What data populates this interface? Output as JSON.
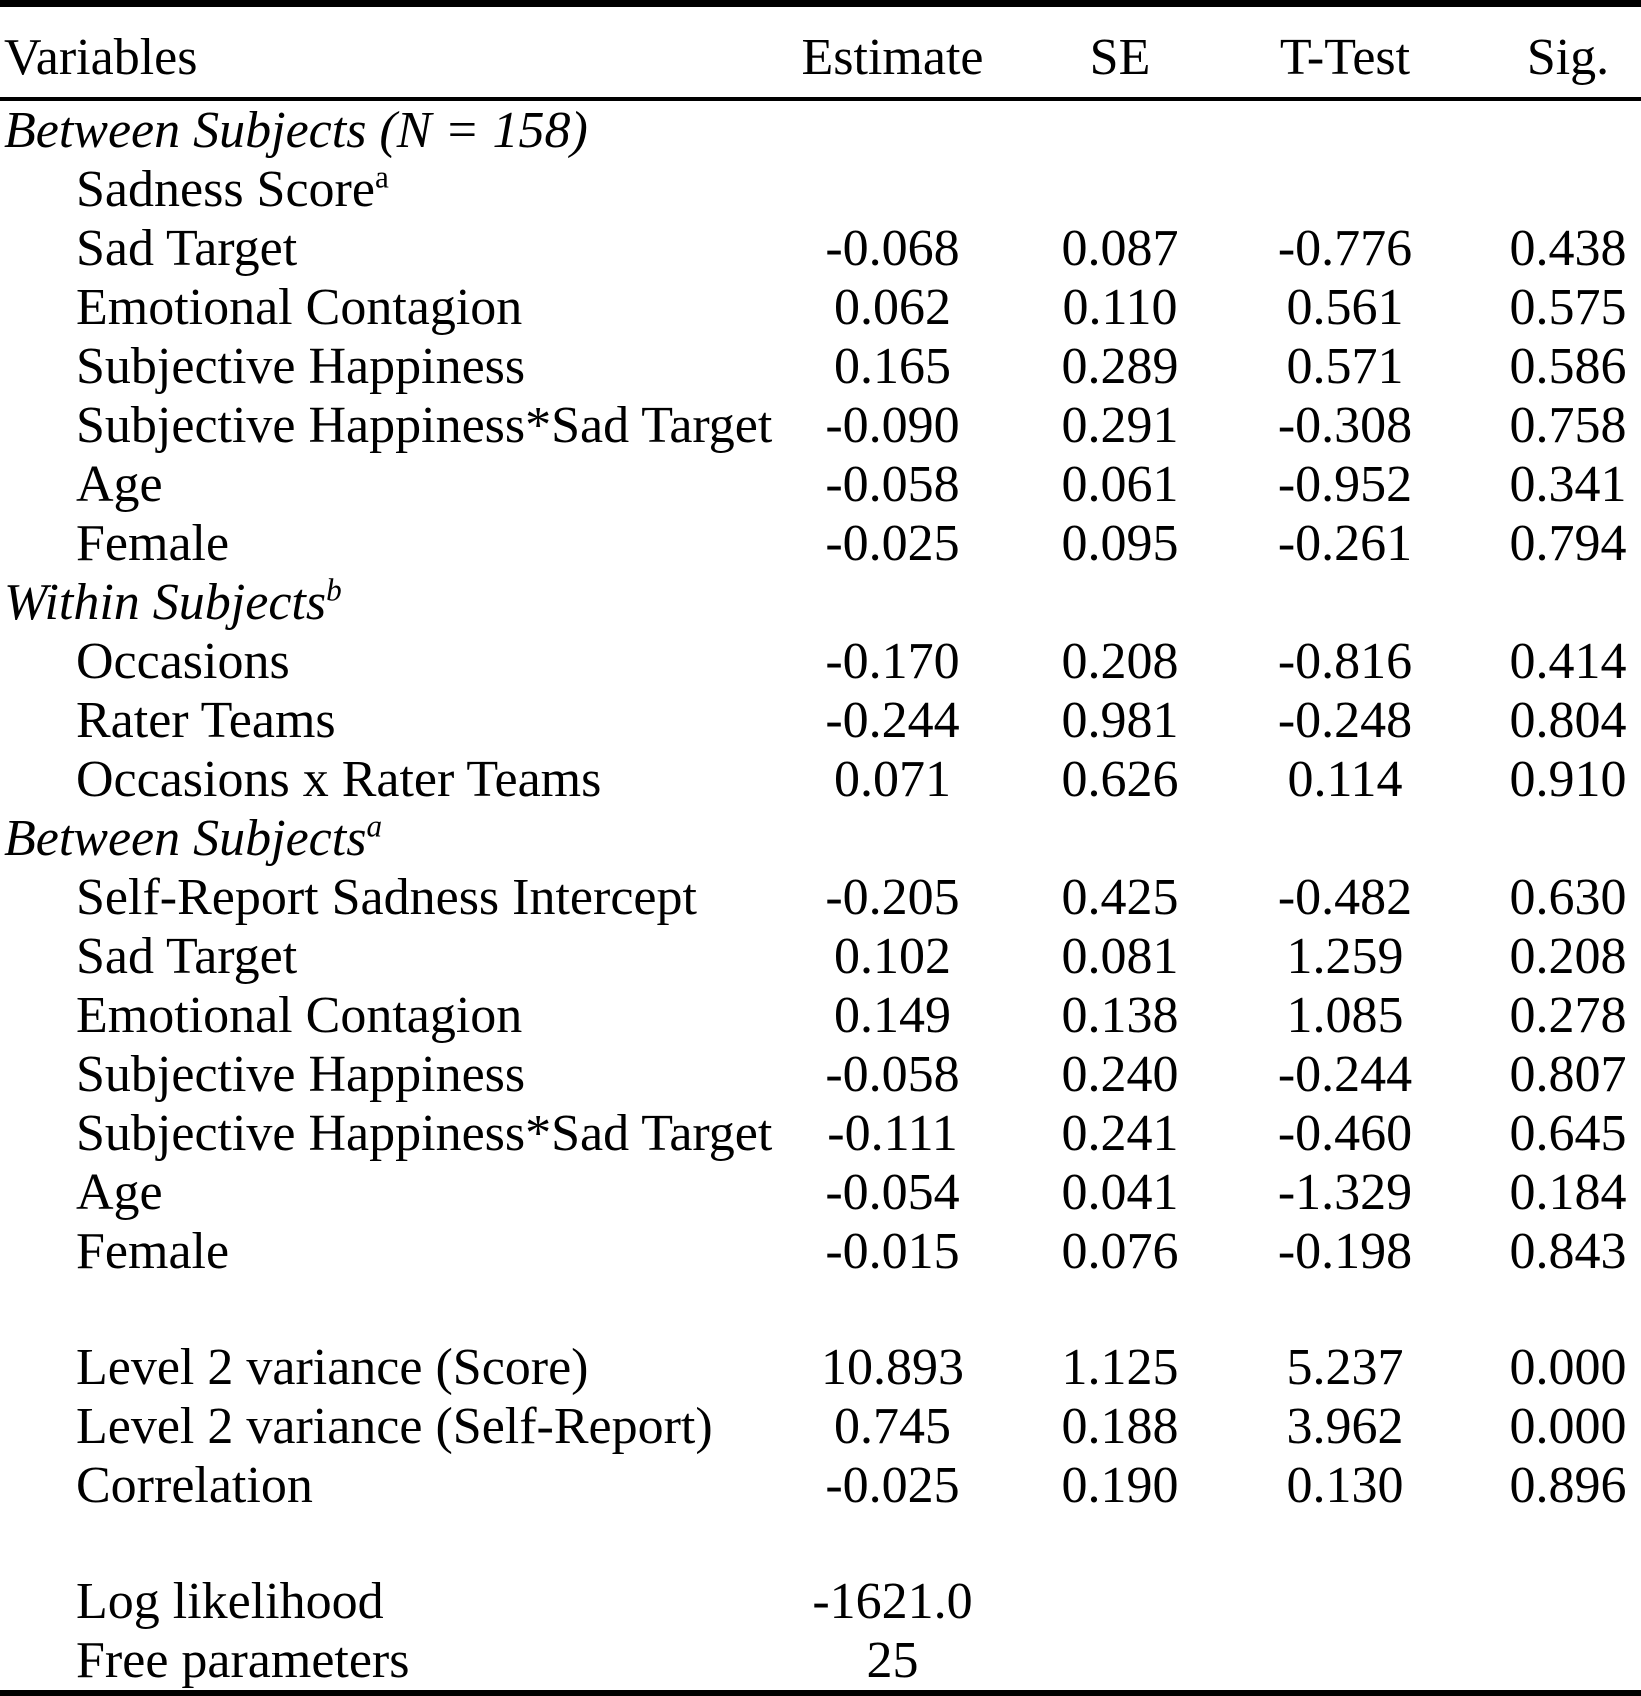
{
  "table": {
    "columns": [
      "Variables",
      "Estimate",
      "SE",
      "T-Test",
      "Sig."
    ],
    "rows": [
      {
        "kind": "section",
        "label": "Between Subjects (N = 158)",
        "sup": "",
        "values": [
          "",
          "",
          "",
          ""
        ]
      },
      {
        "kind": "item",
        "label": "Sadness Score",
        "sup": "a",
        "values": [
          "",
          "",
          "",
          ""
        ]
      },
      {
        "kind": "item",
        "label": "Sad Target",
        "sup": "",
        "values": [
          "-0.068",
          "0.087",
          "-0.776",
          "0.438"
        ]
      },
      {
        "kind": "item",
        "label": "Emotional Contagion",
        "sup": "",
        "values": [
          "0.062",
          "0.110",
          "0.561",
          "0.575"
        ]
      },
      {
        "kind": "item",
        "label": "Subjective Happiness",
        "sup": "",
        "values": [
          "0.165",
          "0.289",
          "0.571",
          "0.586"
        ]
      },
      {
        "kind": "item",
        "label": "Subjective Happiness*Sad Target",
        "sup": "",
        "values": [
          "-0.090",
          "0.291",
          "-0.308",
          "0.758"
        ]
      },
      {
        "kind": "item",
        "label": "Age",
        "sup": "",
        "values": [
          "-0.058",
          "0.061",
          "-0.952",
          "0.341"
        ]
      },
      {
        "kind": "item",
        "label": "Female",
        "sup": "",
        "values": [
          "-0.025",
          "0.095",
          "-0.261",
          "0.794"
        ]
      },
      {
        "kind": "section",
        "label": "Within Subjects",
        "sup": "b",
        "values": [
          "",
          "",
          "",
          ""
        ]
      },
      {
        "kind": "item",
        "label": "Occasions",
        "sup": "",
        "values": [
          "-0.170",
          "0.208",
          "-0.816",
          "0.414"
        ]
      },
      {
        "kind": "item",
        "label": "Rater Teams",
        "sup": "",
        "values": [
          "-0.244",
          "0.981",
          "-0.248",
          "0.804"
        ]
      },
      {
        "kind": "item",
        "label": "Occasions x Rater Teams",
        "sup": "",
        "values": [
          "0.071",
          "0.626",
          "0.114",
          "0.910"
        ]
      },
      {
        "kind": "section",
        "label": "Between Subjects",
        "sup": "a",
        "values": [
          "",
          "",
          "",
          ""
        ]
      },
      {
        "kind": "item",
        "label": "Self-Report Sadness Intercept",
        "sup": "",
        "values": [
          "-0.205",
          "0.425",
          "-0.482",
          "0.630"
        ]
      },
      {
        "kind": "item",
        "label": "Sad Target",
        "sup": "",
        "values": [
          "0.102",
          "0.081",
          "1.259",
          "0.208"
        ]
      },
      {
        "kind": "item",
        "label": "Emotional Contagion",
        "sup": "",
        "values": [
          "0.149",
          "0.138",
          "1.085",
          "0.278"
        ]
      },
      {
        "kind": "item",
        "label": "Subjective Happiness",
        "sup": "",
        "values": [
          "-0.058",
          "0.240",
          "-0.244",
          "0.807"
        ]
      },
      {
        "kind": "item",
        "label": "Subjective Happiness*Sad Target",
        "sup": "",
        "values": [
          "-0.111",
          "0.241",
          "-0.460",
          "0.645"
        ]
      },
      {
        "kind": "item",
        "label": "Age",
        "sup": "",
        "values": [
          "-0.054",
          "0.041",
          "-1.329",
          "0.184"
        ]
      },
      {
        "kind": "item",
        "label": "Female",
        "sup": "",
        "values": [
          "-0.015",
          "0.076",
          "-0.198",
          "0.843"
        ]
      },
      {
        "kind": "blank"
      },
      {
        "kind": "item",
        "label": "Level 2 variance (Score)",
        "sup": "",
        "values": [
          "10.893",
          "1.125",
          "5.237",
          "0.000"
        ]
      },
      {
        "kind": "item",
        "label": "Level 2 variance (Self-Report)",
        "sup": "",
        "values": [
          "0.745",
          "0.188",
          "3.962",
          "0.000"
        ]
      },
      {
        "kind": "item",
        "label": "Correlation",
        "sup": "",
        "values": [
          "-0.025",
          "0.190",
          "0.130",
          "0.896"
        ]
      },
      {
        "kind": "blank"
      },
      {
        "kind": "item",
        "label": "Log likelihood",
        "sup": "",
        "values": [
          "-1621.0",
          "",
          "",
          ""
        ]
      },
      {
        "kind": "item",
        "label": "Free parameters",
        "sup": "",
        "values": [
          "25",
          "",
          "",
          ""
        ]
      }
    ]
  },
  "colors": {
    "text": "#000000",
    "background": "#ffffff",
    "rule": "#000000"
  }
}
